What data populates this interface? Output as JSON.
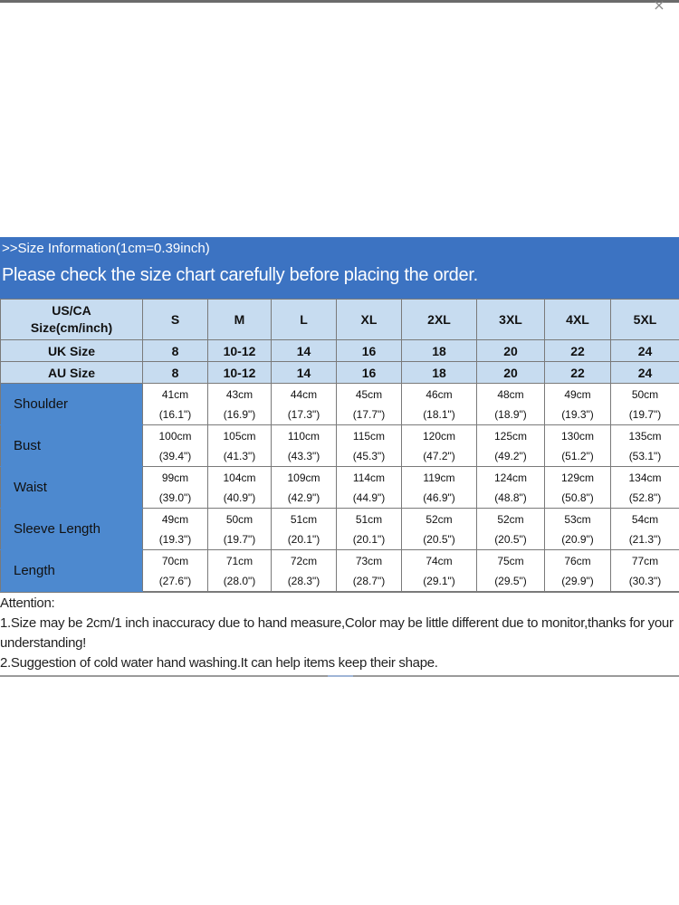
{
  "header": {
    "line1": ">>Size Information(1cm=0.39inch)",
    "line2": "Please check the size chart carefully before placing the order."
  },
  "table": {
    "head_label": [
      "US/CA",
      "Size(cm/inch)"
    ],
    "sizes": [
      "S",
      "M",
      "L",
      "XL",
      "2XL",
      "3XL",
      "4XL",
      "5XL"
    ],
    "uk": {
      "label": "UK Size",
      "values": [
        "8",
        "10-12",
        "14",
        "16",
        "18",
        "20",
        "22",
        "24"
      ]
    },
    "au": {
      "label": "AU Size",
      "values": [
        "8",
        "10-12",
        "14",
        "16",
        "18",
        "20",
        "22",
        "24"
      ]
    },
    "rows": [
      {
        "label": "Shoulder",
        "cm": [
          "41cm",
          "43cm",
          "44cm",
          "45cm",
          "46cm",
          "48cm",
          "49cm",
          "50cm"
        ],
        "inch": [
          "(16.1\")",
          "(16.9\")",
          "(17.3\")",
          "(17.7\")",
          "(18.1\")",
          "(18.9\")",
          "(19.3\")",
          "(19.7\")"
        ]
      },
      {
        "label": "Bust",
        "cm": [
          "100cm",
          "105cm",
          "110cm",
          "115cm",
          "120cm",
          "125cm",
          "130cm",
          "135cm"
        ],
        "inch": [
          "(39.4\")",
          "(41.3\")",
          "(43.3\")",
          "(45.3\")",
          "(47.2\")",
          "(49.2\")",
          "(51.2\")",
          "(53.1\")"
        ]
      },
      {
        "label": "Waist",
        "cm": [
          "99cm",
          "104cm",
          "109cm",
          "114cm",
          "119cm",
          "124cm",
          "129cm",
          "134cm"
        ],
        "inch": [
          "(39.0\")",
          "(40.9\")",
          "(42.9\")",
          "(44.9\")",
          "(46.9\")",
          "(48.8\")",
          "(50.8\")",
          "(52.8\")"
        ]
      },
      {
        "label": "Sleeve Length",
        "cm": [
          "49cm",
          "50cm",
          "51cm",
          "51cm",
          "52cm",
          "52cm",
          "53cm",
          "54cm"
        ],
        "inch": [
          "(19.3\")",
          "(19.7\")",
          "(20.1\")",
          "(20.1\")",
          "(20.5\")",
          "(20.5\")",
          "(20.9\")",
          "(21.3\")"
        ]
      },
      {
        "label": "Length",
        "cm": [
          "70cm",
          "71cm",
          "72cm",
          "73cm",
          "74cm",
          "75cm",
          "76cm",
          "77cm"
        ],
        "inch": [
          "(27.6\")",
          "(28.0\")",
          "(28.3\")",
          "(28.7\")",
          "(29.1\")",
          "(29.5\")",
          "(29.9\")",
          "(30.3\")"
        ]
      }
    ]
  },
  "notes": {
    "title": "Attention:",
    "items": [
      "1.Size may be 2cm/1 inch inaccuracy due to hand measure,Color may be little different due to monitor,thanks for your understanding!",
      "2.Suggestion of cold water hand washing.It can help items keep their shape."
    ]
  },
  "icons": {
    "close": "close-icon"
  },
  "colors": {
    "banner": "#3c73c2",
    "header_cells": "#c7dcf0",
    "label_cells": "#4d89cf"
  }
}
